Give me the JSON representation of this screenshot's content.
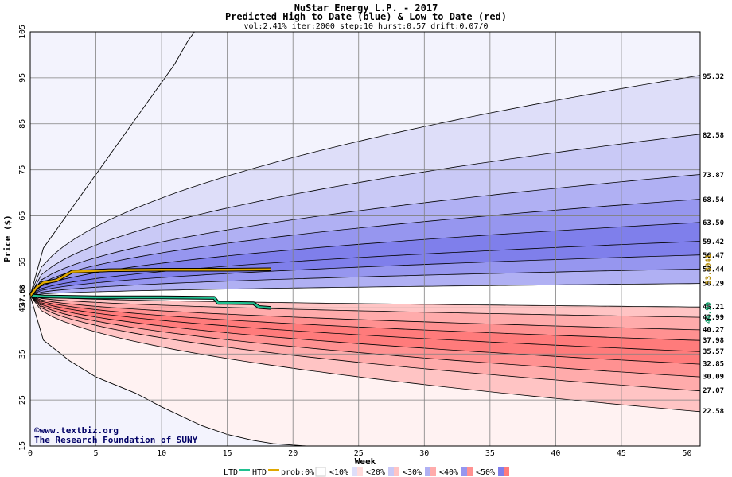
{
  "chart_data": {
    "type": "area",
    "title": "NuStar Energy L.P. - 2017",
    "subtitle": "Predicted High to Date (blue) &  Low to Date (red)",
    "params": "vol:2.41% iter:2000 step:10 hurst:0.57 drift:0.07/0",
    "xlabel": "Week",
    "ylabel": "Price ($)",
    "xlim": [
      0,
      51
    ],
    "ylim": [
      15,
      105
    ],
    "x_ticks": [
      0,
      5,
      10,
      15,
      20,
      25,
      30,
      35,
      40,
      45,
      50
    ],
    "y_ticks": [
      15,
      25,
      35,
      45,
      55,
      65,
      75,
      85,
      95,
      105
    ],
    "grid": true,
    "start_price": 47.68,
    "start_price_label": "47.68",
    "right_labels": [
      "95.32",
      "82.58",
      "73.87",
      "68.54",
      "63.50",
      "59.42",
      "56.47",
      "53.44",
      "50.29",
      "45.21",
      "42.99",
      "40.27",
      "37.98",
      "35.57",
      "32.85",
      "30.09",
      "27.07",
      "22.58"
    ],
    "percentile_end_values": {
      "high": [
        95.32,
        82.58,
        73.87,
        68.54,
        63.5,
        59.42,
        56.47,
        53.44,
        50.29
      ],
      "low": [
        45.21,
        42.99,
        40.27,
        37.98,
        35.57,
        32.85,
        30.09,
        27.07,
        22.58
      ]
    },
    "extreme_curves": {
      "upper_max": [
        [
          0,
          47.68
        ],
        [
          1,
          58
        ],
        [
          3,
          66
        ],
        [
          5,
          74
        ],
        [
          7,
          82
        ],
        [
          9,
          90
        ],
        [
          10,
          94
        ],
        [
          11,
          98
        ],
        [
          12,
          103
        ],
        [
          12.5,
          105
        ]
      ],
      "lower_min": [
        [
          0,
          47.68
        ],
        [
          1,
          38
        ],
        [
          3,
          33.5
        ],
        [
          5,
          30
        ],
        [
          8,
          26.5
        ],
        [
          10,
          23.5
        ],
        [
          13,
          19.5
        ],
        [
          15,
          17.5
        ],
        [
          17,
          16.2
        ],
        [
          18.5,
          15.5
        ],
        [
          21,
          15
        ]
      ]
    },
    "htd": {
      "name": "HTD",
      "color": "#e0a800",
      "end_value": 53.3941,
      "end_label": "53.3941",
      "points": [
        [
          0,
          47.68
        ],
        [
          0.5,
          49.5
        ],
        [
          1,
          50.5
        ],
        [
          2,
          51
        ],
        [
          2.5,
          51.8
        ],
        [
          3.2,
          52.9
        ],
        [
          4.5,
          53
        ],
        [
          6,
          53.2
        ],
        [
          10,
          53.3
        ],
        [
          15,
          53.3
        ],
        [
          18.3,
          53.39
        ]
      ]
    },
    "ltd": {
      "name": "LTD",
      "color": "#20c090",
      "end_value": 44.99,
      "end_label": "44.99",
      "points": [
        [
          0,
          47.68
        ],
        [
          1,
          47.5
        ],
        [
          5,
          47.3
        ],
        [
          10,
          47.3
        ],
        [
          14,
          47.2
        ],
        [
          14.3,
          46.1
        ],
        [
          15,
          46.1
        ],
        [
          17,
          46
        ],
        [
          17.4,
          45.2
        ],
        [
          18.3,
          44.99
        ]
      ]
    },
    "legend": {
      "ltd_label": "LTD",
      "htd_label": "HTD",
      "prob_label": "prob:0%",
      "bins": [
        "<10%",
        "<20%",
        "<30%",
        "<40%",
        "<50%"
      ]
    },
    "colors": {
      "blue_bands": [
        "#f3f3fd",
        "#dedef9",
        "#c9c9f6",
        "#b0b0f3",
        "#9696ef",
        "#7f7feb"
      ],
      "red_bands": [
        "#fff2f2",
        "#ffdcdc",
        "#ffc4c4",
        "#ffabab",
        "#ff9191",
        "#ff7b7b"
      ],
      "grid": "#808080",
      "credit": "#000066"
    },
    "credit": {
      "line1": "©www.textbiz.org",
      "line2": "The Research Foundation of SUNY"
    }
  }
}
